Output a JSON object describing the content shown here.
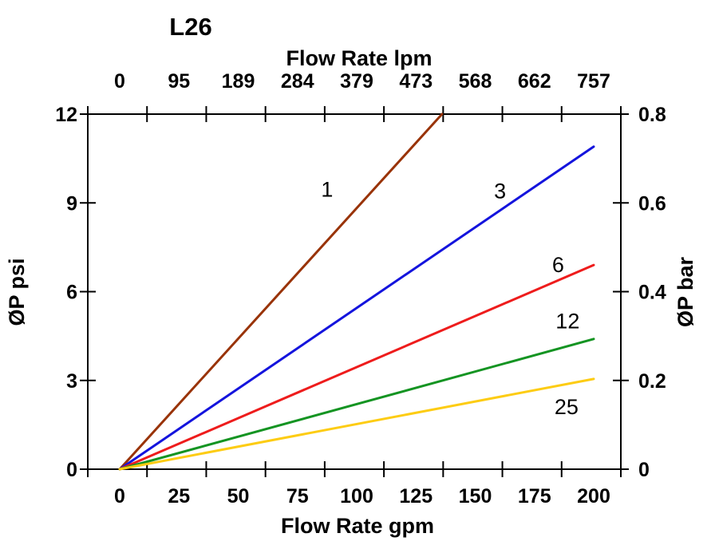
{
  "chart_data": {
    "type": "line",
    "title": "L26",
    "top_axis": {
      "label": "Flow Rate lpm",
      "ticks": [
        0,
        95,
        189,
        284,
        379,
        473,
        568,
        662,
        757
      ]
    },
    "bottom_axis": {
      "label": "Flow Rate gpm",
      "ticks": [
        0,
        25,
        50,
        75,
        100,
        125,
        150,
        175,
        200
      ],
      "range": [
        0,
        200
      ]
    },
    "left_axis": {
      "label": "ØP psi",
      "ticks": [
        0,
        3,
        6,
        9,
        12
      ],
      "range": [
        0,
        12
      ]
    },
    "right_axis": {
      "label": "ØP bar",
      "ticks": [
        "0",
        "0.2",
        "0.4",
        "0.6",
        "0.8"
      ],
      "range": [
        0,
        0.8
      ]
    },
    "grid": false,
    "legend": "inline curve labels",
    "series": [
      {
        "name": "1",
        "color": "#993308",
        "x": [
          0,
          136
        ],
        "y": [
          0,
          12
        ],
        "label_at": {
          "gpm": 87.5,
          "psi": 9.45
        }
      },
      {
        "name": "3",
        "color": "#1414dd",
        "x": [
          0,
          200
        ],
        "y": [
          0,
          10.9
        ],
        "label_at": {
          "gpm": 160.5,
          "psi": 9.4
        }
      },
      {
        "name": "6",
        "color": "#ee1c1c",
        "x": [
          0,
          200
        ],
        "y": [
          0,
          6.9
        ],
        "label_at": {
          "gpm": 185,
          "psi": 6.9
        }
      },
      {
        "name": "12",
        "color": "#149422",
        "x": [
          0,
          200
        ],
        "y": [
          0,
          4.4
        ],
        "label_at": {
          "gpm": 189,
          "psi": 5.0
        }
      },
      {
        "name": "25",
        "color": "#fdcc13",
        "x": [
          0,
          200
        ],
        "y": [
          0,
          3.05
        ],
        "label_at": {
          "gpm": 188.5,
          "psi": 2.1
        }
      }
    ]
  }
}
